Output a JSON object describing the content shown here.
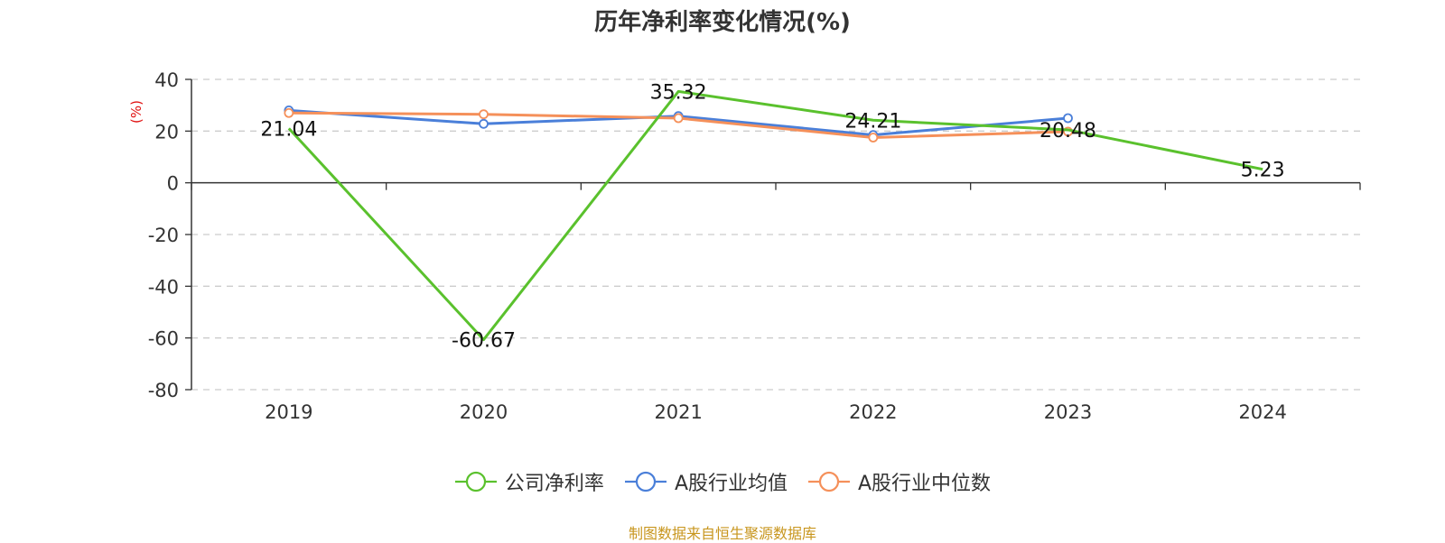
{
  "chart_data": {
    "type": "line",
    "title": "历年净利率变化情况(%)",
    "ylabel": "(%)",
    "ylim": [
      -80,
      40
    ],
    "yticks": [
      40,
      20,
      0,
      -20,
      -40,
      -60,
      -80
    ],
    "categories": [
      "2019",
      "2020",
      "2021",
      "2022",
      "2023",
      "2024"
    ],
    "grid": true,
    "legend_position": "bottom",
    "series": [
      {
        "name": "公司净利率",
        "color": "#5ac12d",
        "values": [
          21.04,
          -60.67,
          35.32,
          24.21,
          20.48,
          5.23
        ],
        "labels": [
          "21.04",
          "-60.67",
          "35.32",
          "24.21",
          "20.48",
          "5.23"
        ],
        "show_markers": false
      },
      {
        "name": "A股行业均值",
        "color": "#4a7fd9",
        "values": [
          28.0,
          22.8,
          25.8,
          18.5,
          25.0,
          null
        ],
        "show_markers": true
      },
      {
        "name": "A股行业中位数",
        "color": "#f5905a",
        "values": [
          27.0,
          26.5,
          25.0,
          17.5,
          19.8,
          null
        ],
        "show_markers": true
      }
    ],
    "source": "制图数据来自恒生聚源数据库",
    "source_color": "#c8961e",
    "ylabel_color": "#e01010"
  }
}
